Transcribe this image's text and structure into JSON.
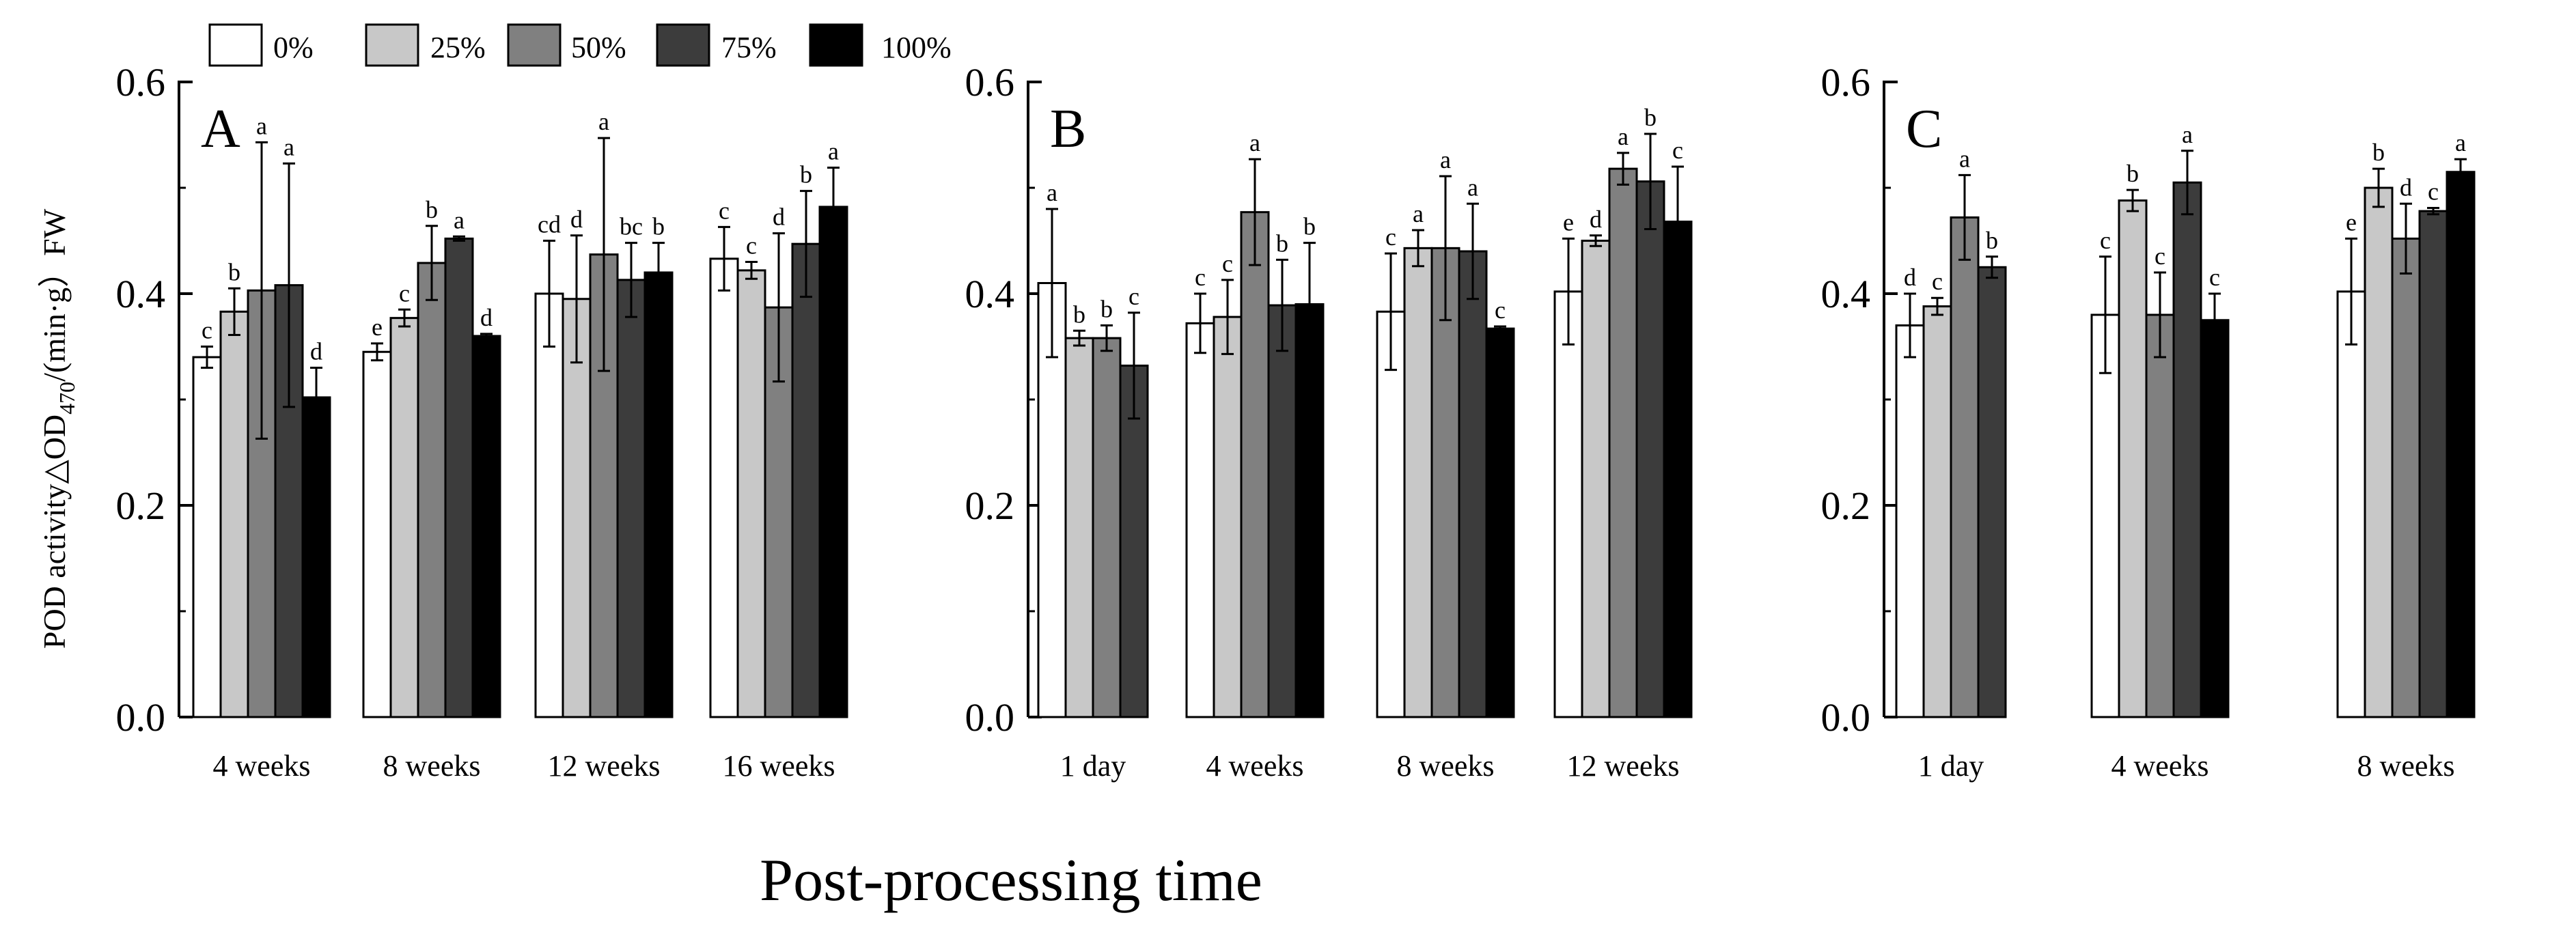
{
  "chart_data": {
    "type": "bar",
    "xlabel": "Post-processing time",
    "ylabel": "POD activity△OD",
    "ylabel_sub": "470",
    "ylabel_tail": "/(min·g）FW",
    "ylim": [
      0,
      0.6
    ],
    "yticks": [
      "0.0",
      "0.2",
      "0.4",
      "0.6"
    ],
    "legend": [
      {
        "label": "0%",
        "color": "#ffffff"
      },
      {
        "label": "25%",
        "color": "#c8c8c8"
      },
      {
        "label": "50%",
        "color": "#808080"
      },
      {
        "label": "75%",
        "color": "#3c3c3c"
      },
      {
        "label": "100%",
        "color": "#000000"
      }
    ],
    "panels": [
      {
        "letter": "A",
        "categories": [
          "4 weeks",
          "8 weeks",
          "12 weeks",
          "16 weeks"
        ],
        "groups": [
          {
            "bars": [
              {
                "value": 0.34,
                "err": 0.01,
                "label": "c"
              },
              {
                "value": 0.383,
                "err": 0.022,
                "label": "b"
              },
              {
                "value": 0.403,
                "err": 0.14,
                "label": "a"
              },
              {
                "value": 0.408,
                "err": 0.115,
                "label": "a"
              },
              {
                "value": 0.302,
                "err": 0.028,
                "label": "d"
              }
            ]
          },
          {
            "bars": [
              {
                "value": 0.345,
                "err": 0.008,
                "label": "e"
              },
              {
                "value": 0.377,
                "err": 0.008,
                "label": "c"
              },
              {
                "value": 0.429,
                "err": 0.035,
                "label": "b"
              },
              {
                "value": 0.452,
                "err": 0.002,
                "label": "a"
              },
              {
                "value": 0.36,
                "err": 0.002,
                "label": "d"
              }
            ]
          },
          {
            "bars": [
              {
                "value": 0.4,
                "err": 0.05,
                "label": "cd"
              },
              {
                "value": 0.395,
                "err": 0.06,
                "label": "d"
              },
              {
                "value": 0.437,
                "err": 0.11,
                "label": "a"
              },
              {
                "value": 0.413,
                "err": 0.035,
                "label": "bc"
              },
              {
                "value": 0.42,
                "err": 0.028,
                "label": "b"
              }
            ]
          },
          {
            "bars": [
              {
                "value": 0.433,
                "err": 0.03,
                "label": "c"
              },
              {
                "value": 0.422,
                "err": 0.008,
                "label": "c"
              },
              {
                "value": 0.387,
                "err": 0.07,
                "label": "d"
              },
              {
                "value": 0.447,
                "err": 0.05,
                "label": "b"
              },
              {
                "value": 0.482,
                "err": 0.037,
                "label": "a"
              }
            ]
          }
        ]
      },
      {
        "letter": "B",
        "categories": [
          "1 day",
          "4 weeks",
          "8 weeks",
          "12 weeks"
        ],
        "groups": [
          {
            "bars": [
              {
                "value": 0.41,
                "err": 0.07,
                "label": "a"
              },
              {
                "value": 0.358,
                "err": 0.007,
                "label": "b"
              },
              {
                "value": 0.358,
                "err": 0.012,
                "label": "b"
              },
              {
                "value": 0.332,
                "err": 0.05,
                "label": "c"
              }
            ]
          },
          {
            "bars": [
              {
                "value": 0.372,
                "err": 0.028,
                "label": "c"
              },
              {
                "value": 0.378,
                "err": 0.035,
                "label": "c"
              },
              {
                "value": 0.477,
                "err": 0.05,
                "label": "a"
              },
              {
                "value": 0.389,
                "err": 0.043,
                "label": "b"
              },
              {
                "value": 0.39,
                "err": 0.058,
                "label": "b"
              }
            ]
          },
          {
            "bars": [
              {
                "value": 0.383,
                "err": 0.055,
                "label": "c"
              },
              {
                "value": 0.443,
                "err": 0.017,
                "label": "a"
              },
              {
                "value": 0.443,
                "err": 0.068,
                "label": "a"
              },
              {
                "value": 0.44,
                "err": 0.045,
                "label": "a"
              },
              {
                "value": 0.367,
                "err": 0.002,
                "label": "c"
              }
            ]
          },
          {
            "bars": [
              {
                "value": 0.402,
                "err": 0.05,
                "label": "e"
              },
              {
                "value": 0.45,
                "err": 0.005,
                "label": "d"
              },
              {
                "value": 0.518,
                "err": 0.015,
                "label": "a"
              },
              {
                "value": 0.506,
                "err": 0.045,
                "label": "b"
              },
              {
                "value": 0.468,
                "err": 0.052,
                "label": "c"
              }
            ]
          }
        ]
      },
      {
        "letter": "C",
        "categories": [
          "1  day",
          "4 weeks",
          "8 weeks"
        ],
        "groups": [
          {
            "bars": [
              {
                "value": 0.37,
                "err": 0.03,
                "label": "d"
              },
              {
                "value": 0.388,
                "err": 0.008,
                "label": "c"
              },
              {
                "value": 0.472,
                "err": 0.04,
                "label": "a"
              },
              {
                "value": 0.425,
                "err": 0.01,
                "label": "b"
              }
            ]
          },
          {
            "bars": [
              {
                "value": 0.38,
                "err": 0.055,
                "label": "c"
              },
              {
                "value": 0.488,
                "err": 0.01,
                "label": "b"
              },
              {
                "value": 0.38,
                "err": 0.04,
                "label": "c"
              },
              {
                "value": 0.505,
                "err": 0.03,
                "label": "a"
              },
              {
                "value": 0.375,
                "err": 0.025,
                "label": "c"
              }
            ]
          },
          {
            "bars": [
              {
                "value": 0.402,
                "err": 0.05,
                "label": "e"
              },
              {
                "value": 0.5,
                "err": 0.018,
                "label": "b"
              },
              {
                "value": 0.452,
                "err": 0.033,
                "label": "d"
              },
              {
                "value": 0.478,
                "err": 0.003,
                "label": "c"
              },
              {
                "value": 0.515,
                "err": 0.012,
                "label": "a"
              }
            ]
          }
        ]
      }
    ]
  }
}
